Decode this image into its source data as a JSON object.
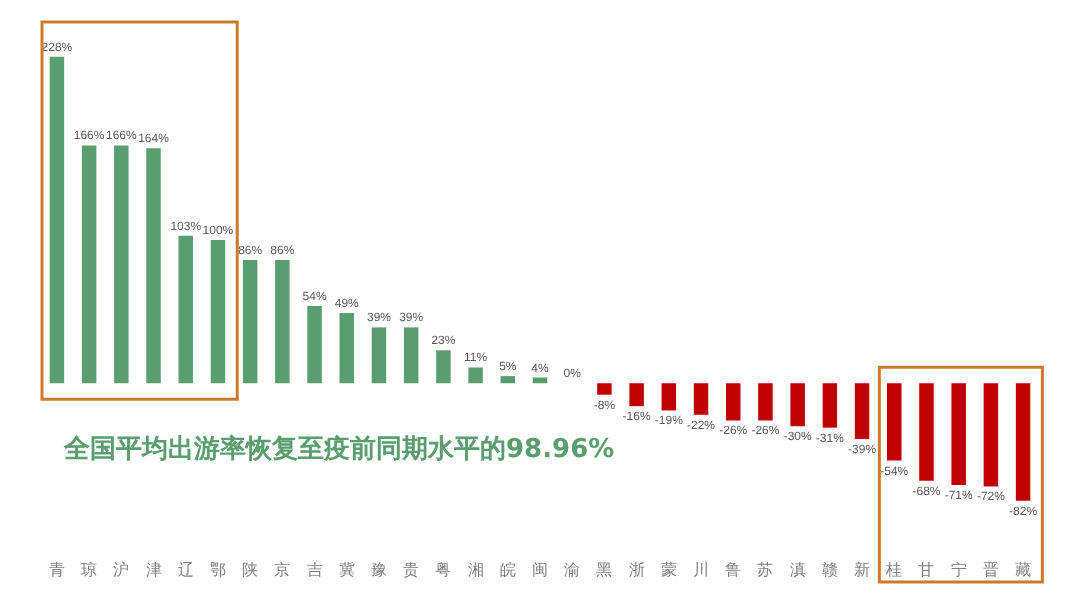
{
  "chart_data": {
    "type": "bar",
    "categories": [
      "青",
      "琼",
      "沪",
      "津",
      "辽",
      "鄂",
      "陕",
      "京",
      "吉",
      "冀",
      "豫",
      "贵",
      "粤",
      "湘",
      "皖",
      "闽",
      "渝",
      "黑",
      "浙",
      "蒙",
      "川",
      "鲁",
      "苏",
      "滇",
      "赣",
      "新",
      "桂",
      "甘",
      "宁",
      "晋",
      "藏"
    ],
    "values": [
      228,
      166,
      166,
      164,
      103,
      100,
      86,
      86,
      54,
      49,
      39,
      39,
      23,
      11,
      5,
      4,
      0,
      -8,
      -16,
      -19,
      -22,
      -26,
      -26,
      -30,
      -31,
      -39,
      -54,
      -68,
      -71,
      -72,
      -82
    ],
    "value_labels": [
      "228%",
      "166%",
      "166%",
      "164%",
      "103%",
      "100%",
      "86%",
      "86%",
      "54%",
      "49%",
      "39%",
      "39%",
      "23%",
      "11%",
      "5%",
      "4%",
      "0%",
      "-8%",
      "-16%",
      "-19%",
      "-22%",
      "-26%",
      "-26%",
      "-30%",
      "-31%",
      "-39%",
      "-54%",
      "-68%",
      "-71%",
      "-72%",
      "-82%"
    ],
    "colors": [
      "#5a9e6f",
      "#5a9e6f",
      "#5a9e6f",
      "#5a9e6f",
      "#5a9e6f",
      "#5a9e6f",
      "#5a9e6f",
      "#5a9e6f",
      "#5a9e6f",
      "#5a9e6f",
      "#5a9e6f",
      "#5a9e6f",
      "#5a9e6f",
      "#5a9e6f",
      "#5a9e6f",
      "#5a9e6f",
      "#5a9e6f",
      "#c00000",
      "#c00000",
      "#c00000",
      "#c00000",
      "#c00000",
      "#c00000",
      "#c00000",
      "#c00000",
      "#c00000",
      "#c00000",
      "#c00000",
      "#c00000",
      "#c00000",
      "#c00000"
    ],
    "annotations": [
      "全国平均出游率恢复至疫前同期水平的98.96%"
    ],
    "grid": false
  }
}
